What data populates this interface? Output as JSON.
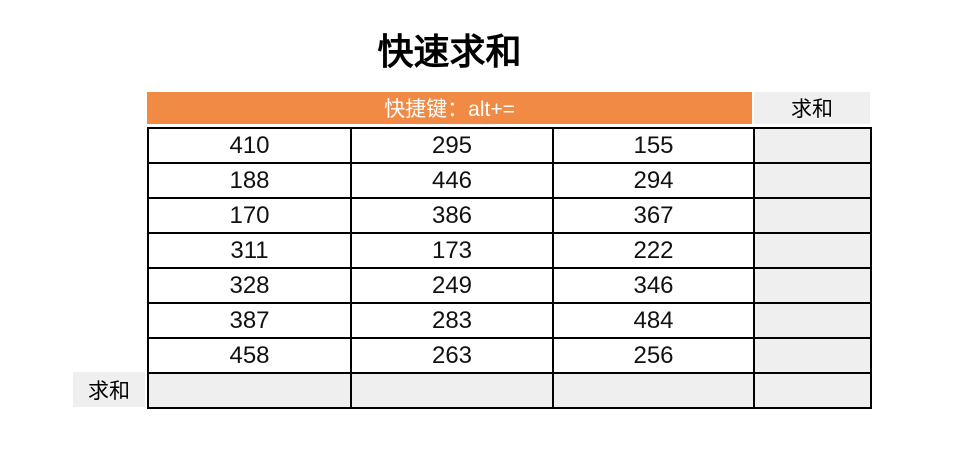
{
  "title": "快速求和",
  "table": {
    "shortcut_header": "快捷键：alt+=",
    "sum_column_header": "求和",
    "sum_row_label": "求和",
    "rows": [
      [
        "410",
        "295",
        "155"
      ],
      [
        "188",
        "446",
        "294"
      ],
      [
        "170",
        "386",
        "367"
      ],
      [
        "311",
        "173",
        "222"
      ],
      [
        "328",
        "249",
        "346"
      ],
      [
        "387",
        "283",
        "484"
      ],
      [
        "458",
        "263",
        "256"
      ]
    ],
    "sum_column_values": [
      "",
      "",
      "",
      "",
      "",
      "",
      ""
    ],
    "sum_row_values": [
      "",
      "",
      "",
      ""
    ]
  },
  "colors": {
    "header_orange": "#F08A44",
    "header_text": "#FFFFFF",
    "cell_gray": "#EFEFEF",
    "border_black": "#000000"
  }
}
